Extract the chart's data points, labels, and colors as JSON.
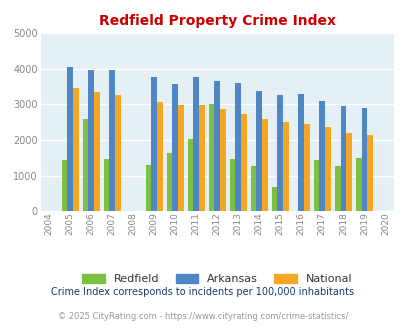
{
  "title": "Redfield Property Crime Index",
  "years": [
    2004,
    2005,
    2006,
    2007,
    2008,
    2009,
    2010,
    2011,
    2012,
    2013,
    2014,
    2015,
    2016,
    2017,
    2018,
    2019,
    2020
  ],
  "redfield": [
    0,
    1450,
    2600,
    1475,
    0,
    1300,
    1625,
    2025,
    3000,
    1475,
    1275,
    680,
    0,
    1425,
    1275,
    1490,
    0
  ],
  "arkansas": [
    0,
    4050,
    3960,
    3960,
    0,
    3775,
    3575,
    3775,
    3650,
    3600,
    3375,
    3250,
    3300,
    3100,
    2950,
    2900,
    0
  ],
  "national": [
    0,
    3450,
    3350,
    3250,
    0,
    3050,
    2975,
    2975,
    2875,
    2725,
    2600,
    2490,
    2460,
    2350,
    2200,
    2125,
    0
  ],
  "redfield_color": "#7dc142",
  "arkansas_color": "#4f86c6",
  "national_color": "#f5a623",
  "bg_color": "#e4f0f5",
  "ylim": [
    0,
    5000
  ],
  "yticks": [
    0,
    1000,
    2000,
    3000,
    4000,
    5000
  ],
  "footnote1": "Crime Index corresponds to incidents per 100,000 inhabitants",
  "footnote2": "© 2025 CityRating.com - https://www.cityrating.com/crime-statistics/",
  "title_color": "#cc0000",
  "footnote1_color": "#1a3a6b",
  "footnote2_color": "#999999",
  "legend_labels": [
    "Redfield",
    "Arkansas",
    "National"
  ],
  "bar_width": 0.27
}
